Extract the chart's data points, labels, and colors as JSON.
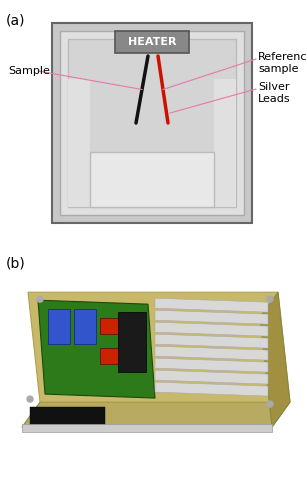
{
  "fig_width": 3.06,
  "fig_height": 4.82,
  "dpi": 100,
  "fig_bg": "#ffffff",
  "divider_color": "#000000",
  "panel_a": {
    "label": "(a)",
    "bg": "#ffffff",
    "diagram_bg": "#d0d0d0",
    "diagram_inner1": "#e0e0e0",
    "diagram_inner2": "#d8d8d8",
    "heater_bg": "#888888",
    "heater_border": "#555555",
    "heater_text": "HEATER",
    "heater_text_color": "#ffffff",
    "annotation_color": "#e878a8",
    "black_lead": "#111111",
    "red_lead": "#cc1100",
    "sample_label": "Sample",
    "ref_label": "Reference\nsample",
    "silver_label": "Silver\nLeads"
  },
  "panel_b": {
    "label": "(b)",
    "bg": "#ffffff",
    "base_color": "#c8b96a",
    "base_edge": "#b0a050",
    "pcb_color": "#2d7a1a",
    "pcb_edge": "#1a4a0a",
    "blue_cap": "#3355cc",
    "red_comp": "#cc2200",
    "black_chip": "#1a1a1a",
    "silver_rod": "#d8d8d8",
    "silver_edge": "#aaaaaa",
    "black_label": "#111111"
  }
}
